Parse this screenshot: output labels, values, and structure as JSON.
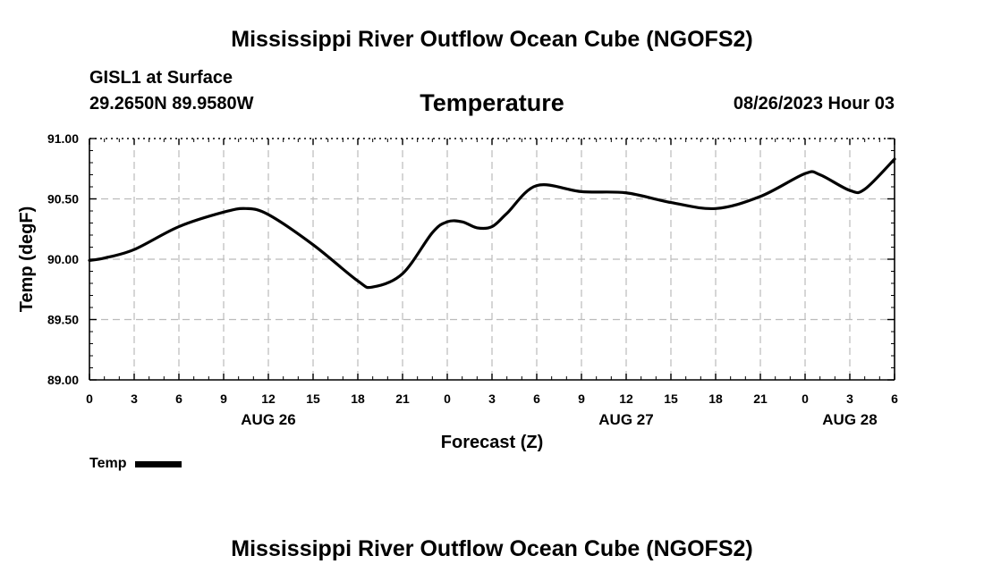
{
  "header": {
    "title": "Mississippi River Outflow Ocean Cube (NGOFS2)",
    "station": "GISL1 at Surface",
    "coords": "29.2650N  89.9580W",
    "panel_title": "Temperature",
    "timestamp": "08/26/2023 Hour 03"
  },
  "footer": {
    "title": "Mississippi River Outflow Ocean Cube (NGOFS2)"
  },
  "legend": {
    "label": "Temp"
  },
  "chart_data": {
    "type": "line",
    "title": "Temperature",
    "xlabel": "Forecast (Z)",
    "ylabel": "Temp (degF)",
    "xlim": [
      0,
      54
    ],
    "ylim": [
      89.0,
      91.0
    ],
    "grid": true,
    "legend_position": "bottom-left",
    "x_ticks": [
      0,
      3,
      6,
      9,
      12,
      15,
      18,
      21,
      24,
      27,
      30,
      33,
      36,
      39,
      42,
      45,
      48,
      51,
      54
    ],
    "x_tick_labels": [
      "0",
      "3",
      "6",
      "9",
      "12",
      "15",
      "18",
      "21",
      "0",
      "3",
      "6",
      "9",
      "12",
      "15",
      "18",
      "21",
      "0",
      "3",
      "6"
    ],
    "y_ticks": [
      89.0,
      89.5,
      90.0,
      90.5,
      91.0
    ],
    "y_tick_labels": [
      "89.00",
      "89.50",
      "90.00",
      "90.50",
      "91.00"
    ],
    "date_labels": [
      {
        "x": 12,
        "label": "AUG 26"
      },
      {
        "x": 36,
        "label": "AUG 27"
      },
      {
        "x": 51,
        "label": "AUG 28"
      }
    ],
    "series": [
      {
        "name": "Temp",
        "color": "#000000",
        "x": [
          0,
          1,
          3,
          6,
          9,
          10.5,
          12,
          15,
          18,
          19,
          21,
          23,
          24,
          25,
          26,
          27,
          28,
          30,
          33,
          36,
          39,
          42,
          45,
          48,
          49,
          51,
          52,
          54
        ],
        "y": [
          89.99,
          90.01,
          90.08,
          90.27,
          90.39,
          90.42,
          90.37,
          90.12,
          89.82,
          89.77,
          89.88,
          90.22,
          90.31,
          90.31,
          90.26,
          90.27,
          90.38,
          90.61,
          90.56,
          90.55,
          90.47,
          90.42,
          90.52,
          90.71,
          90.7,
          90.57,
          90.58,
          90.83
        ]
      }
    ]
  }
}
